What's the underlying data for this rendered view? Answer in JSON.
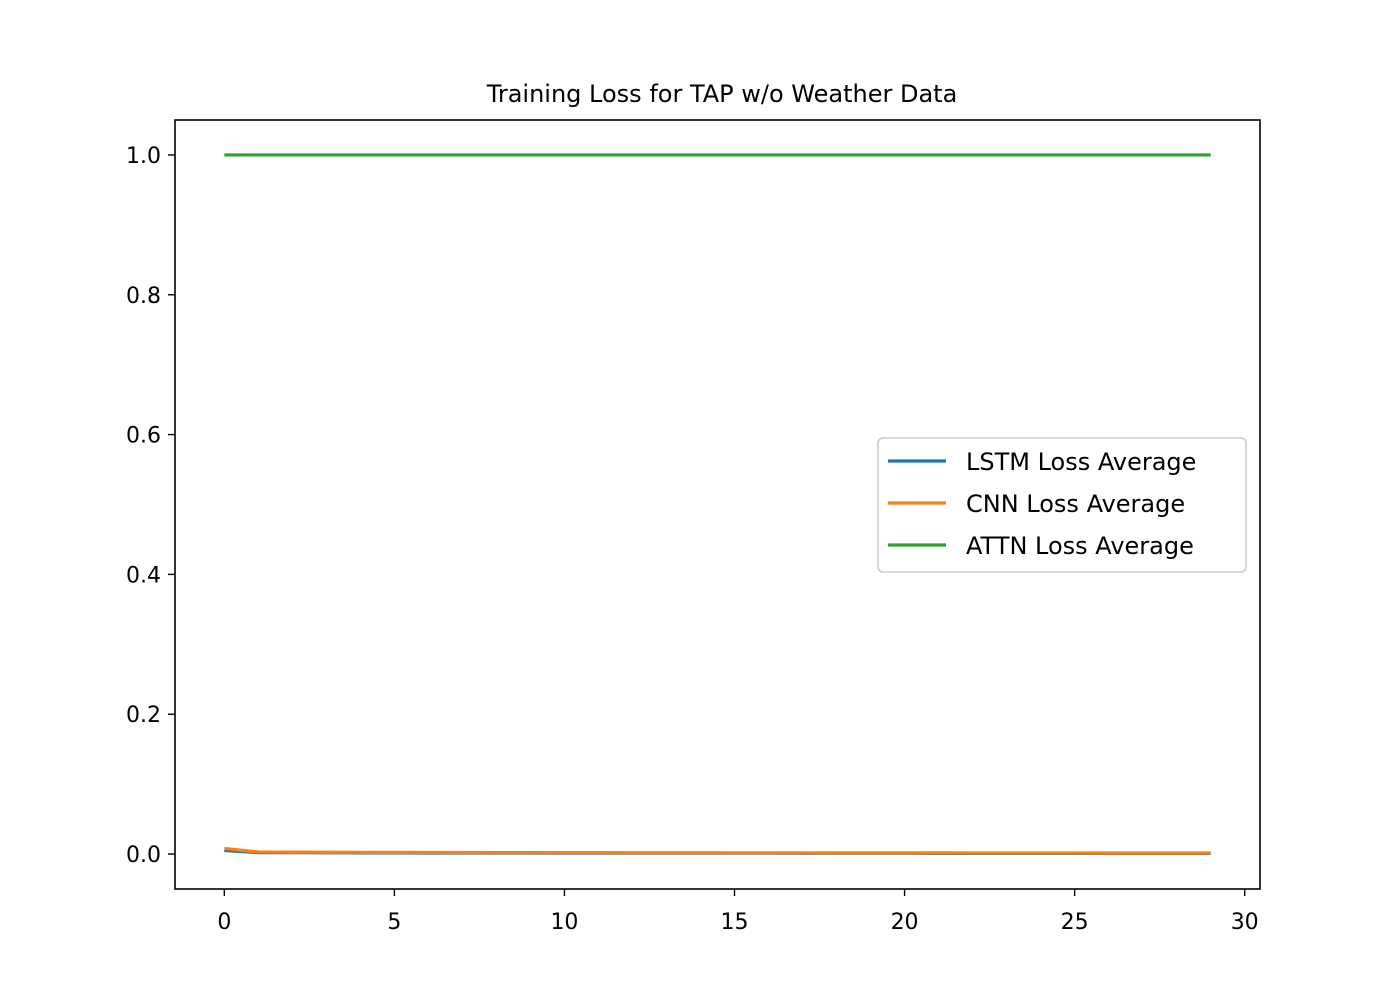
{
  "chart_data": {
    "type": "line",
    "title": "Training Loss for TAP w/o Weather Data",
    "xlabel": "",
    "ylabel": "",
    "xlim": [
      -1.45,
      30.45
    ],
    "ylim": [
      -0.05,
      1.05
    ],
    "xticks": [
      0,
      5,
      10,
      15,
      20,
      25,
      30
    ],
    "xtick_labels": [
      "0",
      "5",
      "10",
      "15",
      "20",
      "25",
      "30"
    ],
    "yticks": [
      0.0,
      0.2,
      0.4,
      0.6,
      0.8,
      1.0
    ],
    "ytick_labels": [
      "0.0",
      "0.2",
      "0.4",
      "0.6",
      "0.8",
      "1.0"
    ],
    "grid": false,
    "legend_position": "center-right",
    "x": [
      0,
      1,
      2,
      3,
      4,
      5,
      6,
      7,
      8,
      9,
      10,
      11,
      12,
      13,
      14,
      15,
      16,
      17,
      18,
      19,
      20,
      21,
      22,
      23,
      24,
      25,
      26,
      27,
      28,
      29
    ],
    "series": [
      {
        "name": "LSTM Loss Average",
        "color": "#1f77b4",
        "values": [
          0.005,
          0.002,
          0.002,
          0.0018,
          0.0017,
          0.0016,
          0.0015,
          0.0015,
          0.0014,
          0.0014,
          0.0013,
          0.0013,
          0.0013,
          0.0012,
          0.0012,
          0.0012,
          0.0012,
          0.0011,
          0.0011,
          0.0011,
          0.0011,
          0.001,
          0.001,
          0.001,
          0.001,
          0.001,
          0.001,
          0.0009,
          0.0009,
          0.0009
        ]
      },
      {
        "name": "CNN Loss Average",
        "color": "#ff7f0e",
        "values": [
          0.008,
          0.003,
          0.0028,
          0.0026,
          0.0025,
          0.0024,
          0.0023,
          0.0022,
          0.0021,
          0.0021,
          0.002,
          0.002,
          0.0019,
          0.0019,
          0.0019,
          0.0018,
          0.0018,
          0.0018,
          0.0017,
          0.0017,
          0.0017,
          0.0017,
          0.0016,
          0.0016,
          0.0016,
          0.0016,
          0.0015,
          0.0015,
          0.0015,
          0.0015
        ]
      },
      {
        "name": "ATTN Loss Average",
        "color": "#2ca02c",
        "values": [
          1.0,
          1.0,
          1.0,
          1.0,
          1.0,
          1.0,
          1.0,
          1.0,
          1.0,
          1.0,
          1.0,
          1.0,
          1.0,
          1.0,
          1.0,
          1.0,
          1.0,
          1.0,
          1.0,
          1.0,
          1.0,
          1.0,
          1.0,
          1.0,
          1.0,
          1.0,
          1.0,
          1.0,
          1.0,
          1.0
        ]
      }
    ]
  }
}
